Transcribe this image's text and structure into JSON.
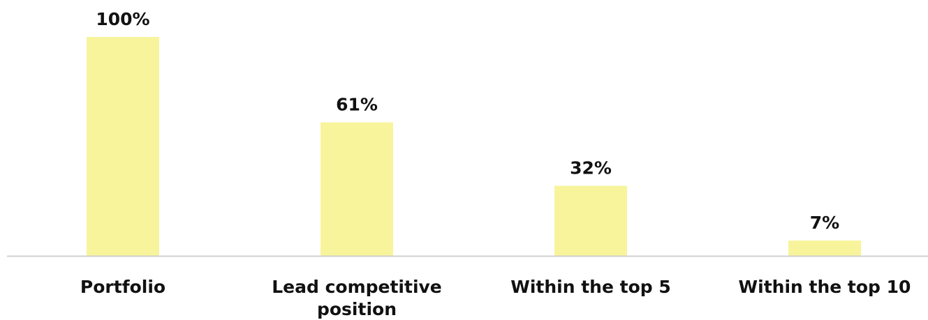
{
  "chart_data": {
    "type": "bar",
    "categories": [
      [
        "Portfolio"
      ],
      [
        "Lead competitive",
        "position"
      ],
      [
        "Within the top 5"
      ],
      [
        "Within the top 10"
      ]
    ],
    "values": [
      100,
      61,
      32,
      7
    ],
    "value_labels": [
      "100%",
      "61%",
      "32%",
      "7%"
    ],
    "ylim": [
      0,
      100
    ],
    "grid": false,
    "bar_color": "#f8f49c",
    "axis_color": "#d0d0d0"
  }
}
